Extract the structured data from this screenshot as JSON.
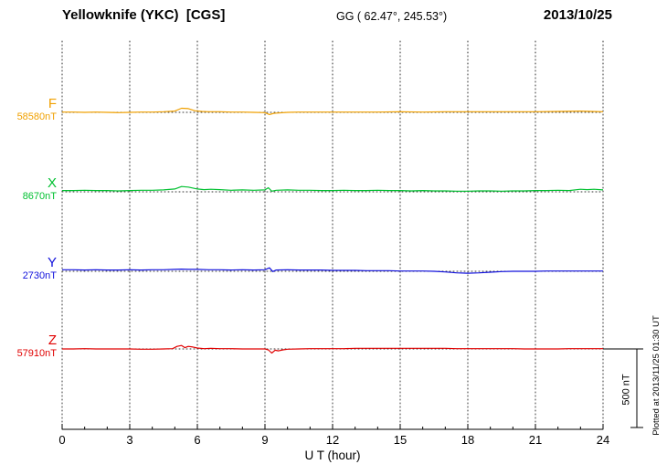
{
  "header": {
    "title": "Yellowknife (YKC)  [CGS]",
    "coords": "GG ( 62.47°, 245.53°)",
    "date": "2013/10/25"
  },
  "footer": {
    "plotted_at": "Plotted at 2013/11/25 01:30 UT"
  },
  "chart_data": {
    "type": "line",
    "title": "Yellowknife (YKC) magnetogram",
    "xlabel": "U T (hour)",
    "x_ticks": [
      0,
      3,
      6,
      9,
      12,
      15,
      18,
      21,
      24
    ],
    "x_range": [
      0,
      24
    ],
    "grid": "dotted vertical at 3h intervals, dotted horizontal baselines",
    "scale_bar": {
      "label": "500 nT",
      "nT": 500
    },
    "series": [
      {
        "label": "F",
        "baseline_label": "58580nT",
        "baseline_nT": 58580,
        "color": "#f0a000",
        "points": [
          [
            0,
            2
          ],
          [
            0.5,
            2
          ],
          [
            1,
            0
          ],
          [
            1.5,
            2
          ],
          [
            2,
            0
          ],
          [
            2.5,
            -2
          ],
          [
            3,
            0
          ],
          [
            3.5,
            2
          ],
          [
            4,
            2
          ],
          [
            4.5,
            4
          ],
          [
            5,
            8
          ],
          [
            5.3,
            26
          ],
          [
            5.6,
            24
          ],
          [
            5.9,
            10
          ],
          [
            6.2,
            6
          ],
          [
            6.5,
            4
          ],
          [
            7,
            4
          ],
          [
            7.5,
            2
          ],
          [
            8,
            2
          ],
          [
            8.5,
            0
          ],
          [
            9,
            -2
          ],
          [
            9.2,
            -14
          ],
          [
            9.4,
            -6
          ],
          [
            9.6,
            -4
          ],
          [
            10,
            0
          ],
          [
            10.5,
            2
          ],
          [
            11,
            2
          ],
          [
            12,
            2
          ],
          [
            13,
            2
          ],
          [
            14,
            2
          ],
          [
            15,
            4
          ],
          [
            16,
            2
          ],
          [
            17,
            4
          ],
          [
            18,
            4
          ],
          [
            19,
            4
          ],
          [
            20,
            4
          ],
          [
            21,
            4
          ],
          [
            22,
            6
          ],
          [
            23,
            8
          ],
          [
            23.5,
            6
          ],
          [
            24,
            4
          ]
        ]
      },
      {
        "label": "X",
        "baseline_label": "8670nT",
        "baseline_nT": 8670,
        "color": "#00c030",
        "points": [
          [
            0,
            8
          ],
          [
            0.5,
            8
          ],
          [
            1,
            10
          ],
          [
            1.5,
            8
          ],
          [
            2,
            8
          ],
          [
            2.5,
            6
          ],
          [
            3,
            8
          ],
          [
            3.5,
            10
          ],
          [
            4,
            10
          ],
          [
            4.5,
            12
          ],
          [
            5,
            18
          ],
          [
            5.3,
            34
          ],
          [
            5.6,
            30
          ],
          [
            6,
            18
          ],
          [
            6.3,
            14
          ],
          [
            6.6,
            16
          ],
          [
            7,
            14
          ],
          [
            7.5,
            10
          ],
          [
            8,
            12
          ],
          [
            8.5,
            10
          ],
          [
            9,
            12
          ],
          [
            9.15,
            26
          ],
          [
            9.3,
            4
          ],
          [
            9.5,
            10
          ],
          [
            10,
            12
          ],
          [
            10.5,
            10
          ],
          [
            11,
            10
          ],
          [
            11.5,
            8
          ],
          [
            12,
            8
          ],
          [
            12.5,
            10
          ],
          [
            13,
            8
          ],
          [
            13.5,
            8
          ],
          [
            14,
            10
          ],
          [
            14.5,
            8
          ],
          [
            15,
            8
          ],
          [
            15.5,
            6
          ],
          [
            16,
            8
          ],
          [
            16.5,
            6
          ],
          [
            17,
            6
          ],
          [
            17.5,
            4
          ],
          [
            18,
            4
          ],
          [
            18.5,
            6
          ],
          [
            19,
            6
          ],
          [
            19.5,
            4
          ],
          [
            20,
            6
          ],
          [
            20.5,
            6
          ],
          [
            21,
            8
          ],
          [
            21.5,
            8
          ],
          [
            22,
            10
          ],
          [
            22.5,
            8
          ],
          [
            23,
            16
          ],
          [
            23.3,
            14
          ],
          [
            23.6,
            16
          ],
          [
            24,
            12
          ]
        ]
      },
      {
        "label": "Y",
        "baseline_label": "2730nT",
        "baseline_nT": 2730,
        "color": "#1010dc",
        "points": [
          [
            0,
            10
          ],
          [
            0.5,
            10
          ],
          [
            1,
            8
          ],
          [
            1.5,
            10
          ],
          [
            2,
            8
          ],
          [
            2.5,
            8
          ],
          [
            3,
            10
          ],
          [
            3.5,
            8
          ],
          [
            4,
            10
          ],
          [
            4.5,
            10
          ],
          [
            5,
            12
          ],
          [
            5.3,
            14
          ],
          [
            5.6,
            12
          ],
          [
            6,
            12
          ],
          [
            6.5,
            10
          ],
          [
            7,
            10
          ],
          [
            7.5,
            8
          ],
          [
            8,
            10
          ],
          [
            8.5,
            8
          ],
          [
            9,
            10
          ],
          [
            9.2,
            22
          ],
          [
            9.35,
            -2
          ],
          [
            9.5,
            8
          ],
          [
            10,
            10
          ],
          [
            10.5,
            8
          ],
          [
            11,
            8
          ],
          [
            11.5,
            8
          ],
          [
            12,
            6
          ],
          [
            12.5,
            6
          ],
          [
            13,
            6
          ],
          [
            13.5,
            4
          ],
          [
            14,
            4
          ],
          [
            14.5,
            4
          ],
          [
            15,
            2
          ],
          [
            15.5,
            2
          ],
          [
            16,
            2
          ],
          [
            16.5,
            0
          ],
          [
            17,
            -4
          ],
          [
            17.5,
            -10
          ],
          [
            18,
            -12
          ],
          [
            18.5,
            -10
          ],
          [
            19,
            -6
          ],
          [
            19.5,
            -2
          ],
          [
            20,
            0
          ],
          [
            20.5,
            0
          ],
          [
            21,
            0
          ],
          [
            21.5,
            2
          ],
          [
            22,
            2
          ],
          [
            22.5,
            2
          ],
          [
            23,
            2
          ],
          [
            23.5,
            2
          ],
          [
            24,
            2
          ]
        ]
      },
      {
        "label": "Z",
        "baseline_label": "57910nT",
        "baseline_nT": 57910,
        "color": "#e00000",
        "points": [
          [
            0,
            0
          ],
          [
            0.5,
            0
          ],
          [
            1,
            2
          ],
          [
            1.5,
            0
          ],
          [
            2,
            0
          ],
          [
            2.5,
            0
          ],
          [
            3,
            0
          ],
          [
            3.5,
            -2
          ],
          [
            4,
            -2
          ],
          [
            4.5,
            0
          ],
          [
            4.9,
            2
          ],
          [
            5.1,
            16
          ],
          [
            5.3,
            22
          ],
          [
            5.45,
            8
          ],
          [
            5.6,
            16
          ],
          [
            5.8,
            12
          ],
          [
            6,
            6
          ],
          [
            6.3,
            2
          ],
          [
            6.6,
            4
          ],
          [
            7,
            2
          ],
          [
            7.5,
            2
          ],
          [
            8,
            0
          ],
          [
            8.5,
            0
          ],
          [
            9,
            0
          ],
          [
            9.15,
            -6
          ],
          [
            9.3,
            -26
          ],
          [
            9.45,
            -8
          ],
          [
            9.6,
            -12
          ],
          [
            9.8,
            -6
          ],
          [
            10,
            -2
          ],
          [
            10.5,
            0
          ],
          [
            11,
            2
          ],
          [
            11.5,
            2
          ],
          [
            12,
            2
          ],
          [
            12.5,
            2
          ],
          [
            13,
            4
          ],
          [
            13.5,
            4
          ],
          [
            14,
            4
          ],
          [
            14.5,
            4
          ],
          [
            15,
            4
          ],
          [
            15.5,
            4
          ],
          [
            16,
            4
          ],
          [
            16.5,
            4
          ],
          [
            17,
            4
          ],
          [
            17.5,
            2
          ],
          [
            18,
            2
          ],
          [
            18.5,
            2
          ],
          [
            19,
            2
          ],
          [
            19.5,
            2
          ],
          [
            20,
            2
          ],
          [
            20.5,
            0
          ],
          [
            21,
            0
          ],
          [
            21.5,
            0
          ],
          [
            22,
            0
          ],
          [
            22.5,
            2
          ],
          [
            23,
            2
          ],
          [
            23.5,
            2
          ],
          [
            24,
            2
          ]
        ]
      }
    ]
  }
}
